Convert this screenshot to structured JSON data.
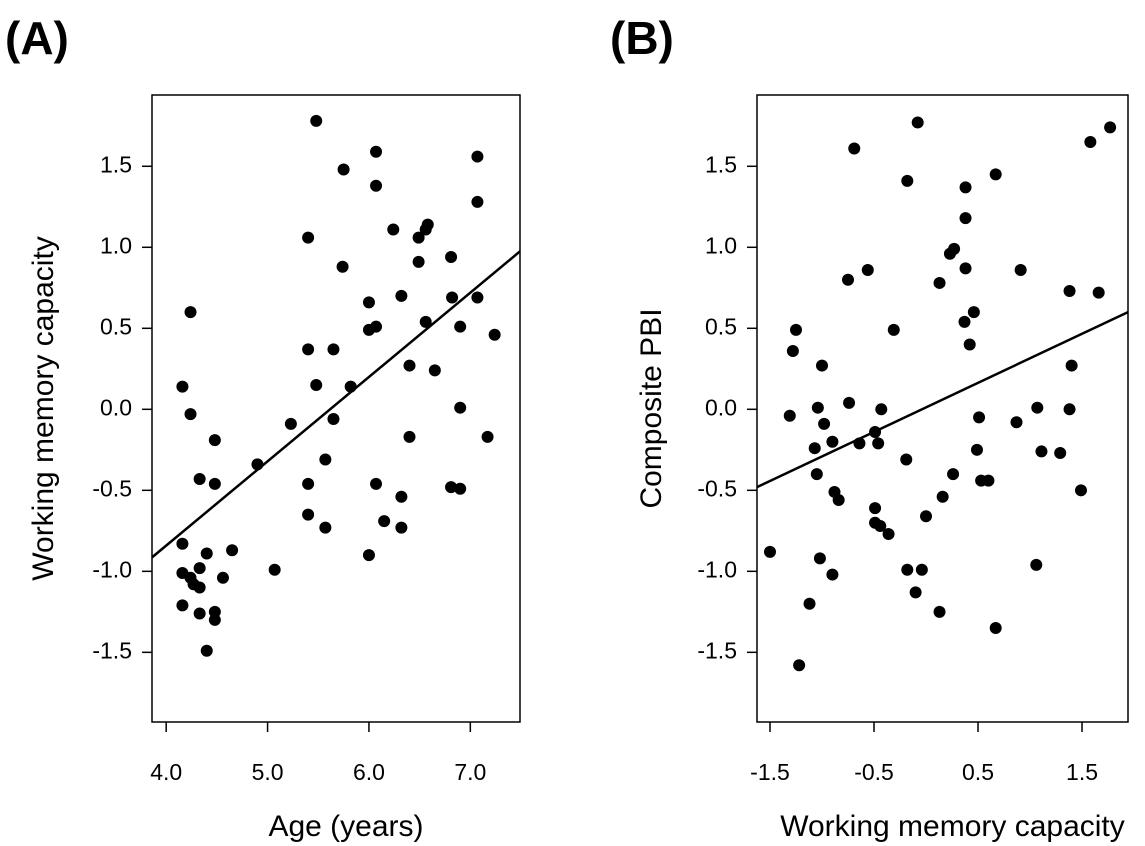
{
  "chart_data": [
    {
      "type": "scatter",
      "panel_label": "(A)",
      "x_label": "Age (years)",
      "y_label": "Working memory capacity",
      "xlim": [
        3.86,
        7.49
      ],
      "ylim": [
        -1.93,
        1.94
      ],
      "xticks": [
        {
          "value": 4,
          "label": "4.0"
        },
        {
          "value": 5,
          "label": "5.0"
        },
        {
          "value": 6,
          "label": "6.0"
        },
        {
          "value": 7,
          "label": "7.0"
        }
      ],
      "yticks": [
        -1.5,
        {
          "value": -1,
          "label": "-1.0"
        },
        -0.5,
        {
          "value": 0,
          "label": "0.0"
        },
        0.5,
        {
          "value": 1,
          "label": "1.0"
        },
        1.5
      ],
      "color": "#000000",
      "x": [
        5.48,
        6.07,
        5.75,
        6.07,
        7.07,
        7.07,
        5.4,
        6.24,
        6.58,
        6.56,
        6.49,
        6.49,
        5.74,
        6.81,
        4.24,
        6.0,
        6.32,
        6.82,
        7.07,
        6.56,
        6.0,
        6.07,
        6.9,
        7.24,
        5.4,
        5.65,
        5.48,
        5.82,
        4.16,
        6.4,
        6.65,
        4.24,
        6.9,
        5.23,
        5.65,
        7.17,
        4.48,
        6.4,
        5.57,
        4.9,
        4.33,
        4.48,
        5.4,
        6.07,
        6.81,
        6.9,
        6.32,
        5.4,
        6.15,
        5.57,
        6.32,
        4.16,
        4.65,
        4.4,
        6.0,
        4.16,
        4.33,
        5.07,
        4.24,
        4.56,
        4.27,
        4.33,
        4.16,
        4.33,
        4.48,
        4.48,
        4.4
      ],
      "y": [
        1.78,
        1.59,
        1.48,
        1.38,
        1.56,
        1.28,
        1.06,
        1.11,
        1.14,
        1.11,
        1.06,
        0.91,
        0.88,
        0.94,
        0.6,
        0.66,
        0.7,
        0.69,
        0.69,
        0.54,
        0.49,
        0.51,
        0.51,
        0.46,
        0.37,
        0.37,
        0.15,
        0.14,
        0.14,
        0.27,
        0.24,
        -0.03,
        0.01,
        -0.09,
        -0.06,
        -0.17,
        -0.19,
        -0.17,
        -0.31,
        -0.34,
        -0.43,
        -0.46,
        -0.46,
        -0.46,
        -0.48,
        -0.49,
        -0.54,
        -0.65,
        -0.69,
        -0.73,
        -0.73,
        -0.83,
        -0.87,
        -0.89,
        -0.9,
        -1.01,
        -0.98,
        -0.99,
        -1.04,
        -1.04,
        -1.08,
        -1.1,
        -1.21,
        -1.26,
        -1.25,
        -1.3,
        -1.49
      ],
      "fit": {
        "x": [
          3.86,
          7.49
        ],
        "y": [
          -0.914,
          0.975
        ]
      }
    },
    {
      "type": "scatter",
      "panel_label": "(B)",
      "x_label": "Working memory capacity",
      "y_label": "Composite PBI",
      "xlim": [
        -1.625,
        1.942
      ],
      "ylim": [
        -1.93,
        1.94
      ],
      "xticks": [
        -1.5,
        -0.5,
        0.5,
        1.5
      ],
      "yticks": [
        -1.5,
        {
          "value": -1,
          "label": "-1.0"
        },
        -0.5,
        {
          "value": 0,
          "label": "0.0"
        },
        0.5,
        {
          "value": 1,
          "label": "1.0"
        },
        1.5
      ],
      "color": "#000000",
      "x": [
        -0.08,
        1.77,
        1.58,
        -0.69,
        0.67,
        -0.18,
        0.38,
        0.38,
        0.27,
        0.23,
        -0.75,
        -0.56,
        0.13,
        0.38,
        0.91,
        1.66,
        1.38,
        0.46,
        0.37,
        -0.31,
        -1.25,
        -1.28,
        0.42,
        -1.0,
        1.4,
        -0.74,
        -1.04,
        -0.43,
        1.07,
        1.38,
        -1.31,
        0.51,
        -0.98,
        0.87,
        -0.49,
        -0.46,
        -0.64,
        -0.9,
        -1.07,
        -0.19,
        0.49,
        1.11,
        1.29,
        -1.05,
        0.26,
        0.53,
        0.6,
        1.49,
        0.16,
        -0.88,
        -0.84,
        -0.49,
        -0.49,
        -0.44,
        -0.36,
        0.0,
        -1.5,
        -1.02,
        -0.9,
        -0.18,
        -0.04,
        1.06,
        -0.1,
        -1.12,
        0.13,
        0.67,
        -1.22
      ],
      "y": [
        1.77,
        1.74,
        1.65,
        1.61,
        1.45,
        1.41,
        1.37,
        1.18,
        0.99,
        0.96,
        0.8,
        0.86,
        0.78,
        0.87,
        0.86,
        0.72,
        0.73,
        0.6,
        0.54,
        0.49,
        0.49,
        0.36,
        0.4,
        0.27,
        0.27,
        0.04,
        0.01,
        0.0,
        0.01,
        0.0,
        -0.04,
        -0.05,
        -0.09,
        -0.08,
        -0.14,
        -0.21,
        -0.21,
        -0.2,
        -0.24,
        -0.31,
        -0.25,
        -0.26,
        -0.27,
        -0.4,
        -0.4,
        -0.44,
        -0.44,
        -0.5,
        -0.54,
        -0.51,
        -0.56,
        -0.61,
        -0.7,
        -0.72,
        -0.77,
        -0.66,
        -0.88,
        -0.92,
        -1.02,
        -0.99,
        -0.99,
        -0.96,
        -1.13,
        -1.2,
        -1.25,
        -1.35,
        -1.58
      ],
      "fit": {
        "x": [
          -1.625,
          1.942
        ],
        "y": [
          -0.48,
          0.6
        ]
      }
    }
  ]
}
